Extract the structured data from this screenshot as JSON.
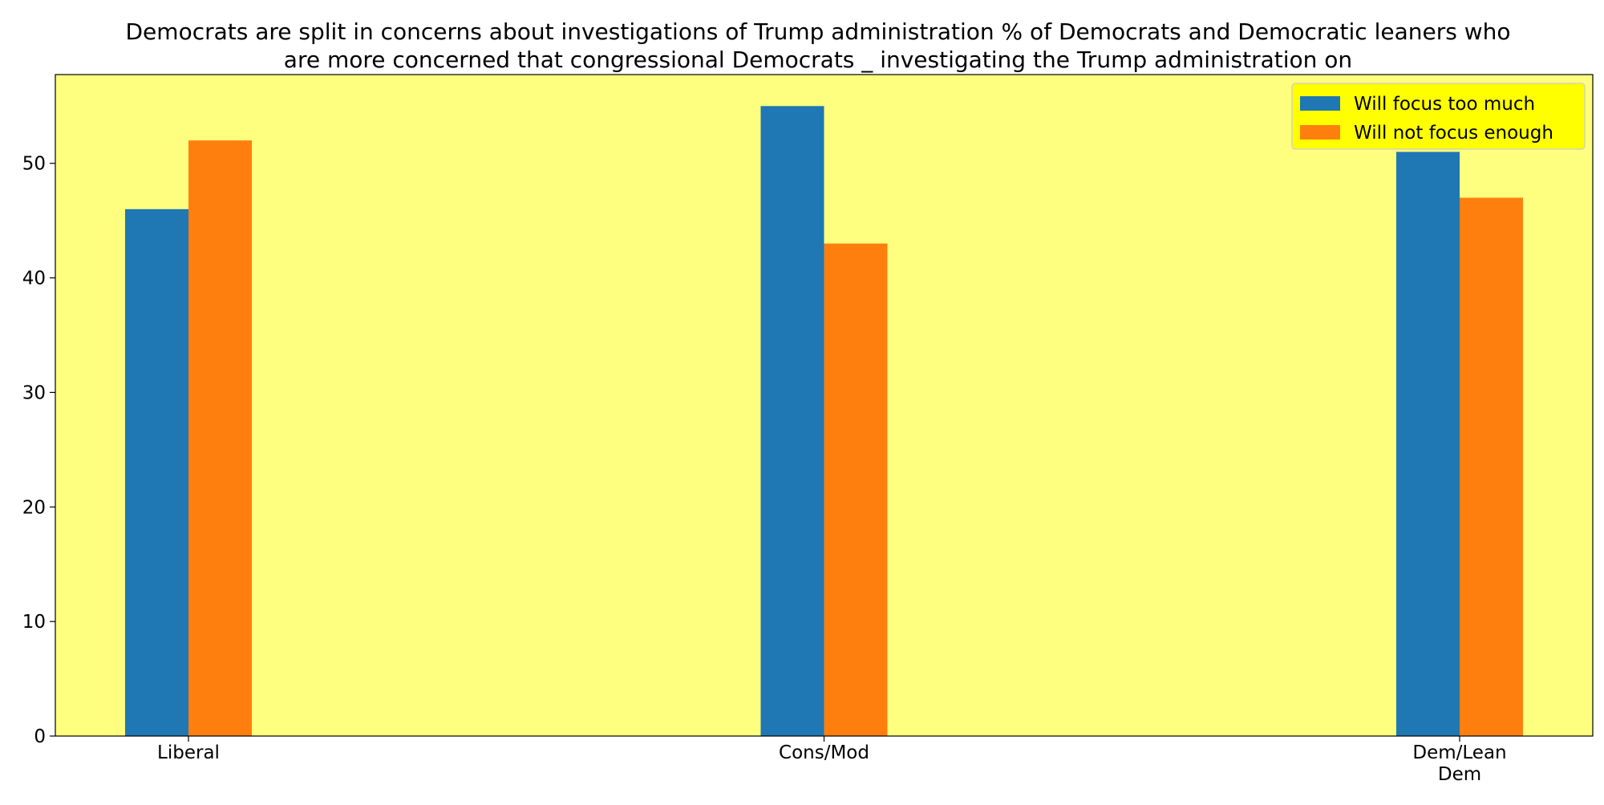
{
  "chart_data": {
    "type": "bar",
    "title_lines": [
      "Democrats are split in concerns about investigations of Trump administration % of Democrats and Democratic leaners who",
      "are more concerned that congressional Democrats _ investigating the Trump administration on"
    ],
    "xlabel": "",
    "ylabel": "",
    "categories": [
      [
        "Liberal"
      ],
      [
        "Cons/Mod"
      ],
      [
        "Dem/Lean",
        "Dem"
      ]
    ],
    "series": [
      {
        "name": "Will focus too much",
        "color": "#1f77b4",
        "values": [
          46,
          55,
          51
        ]
      },
      {
        "name": "Will not focus enough",
        "color": "#ff7f0e",
        "values": [
          52,
          43,
          47
        ]
      }
    ],
    "ylim": [
      0,
      57.75
    ],
    "yticks": [
      0,
      10,
      20,
      30,
      40,
      50
    ],
    "grid": false,
    "legend_position": "top-right",
    "plot_background": "#ffff7f",
    "legend_background": "#ffff00"
  }
}
